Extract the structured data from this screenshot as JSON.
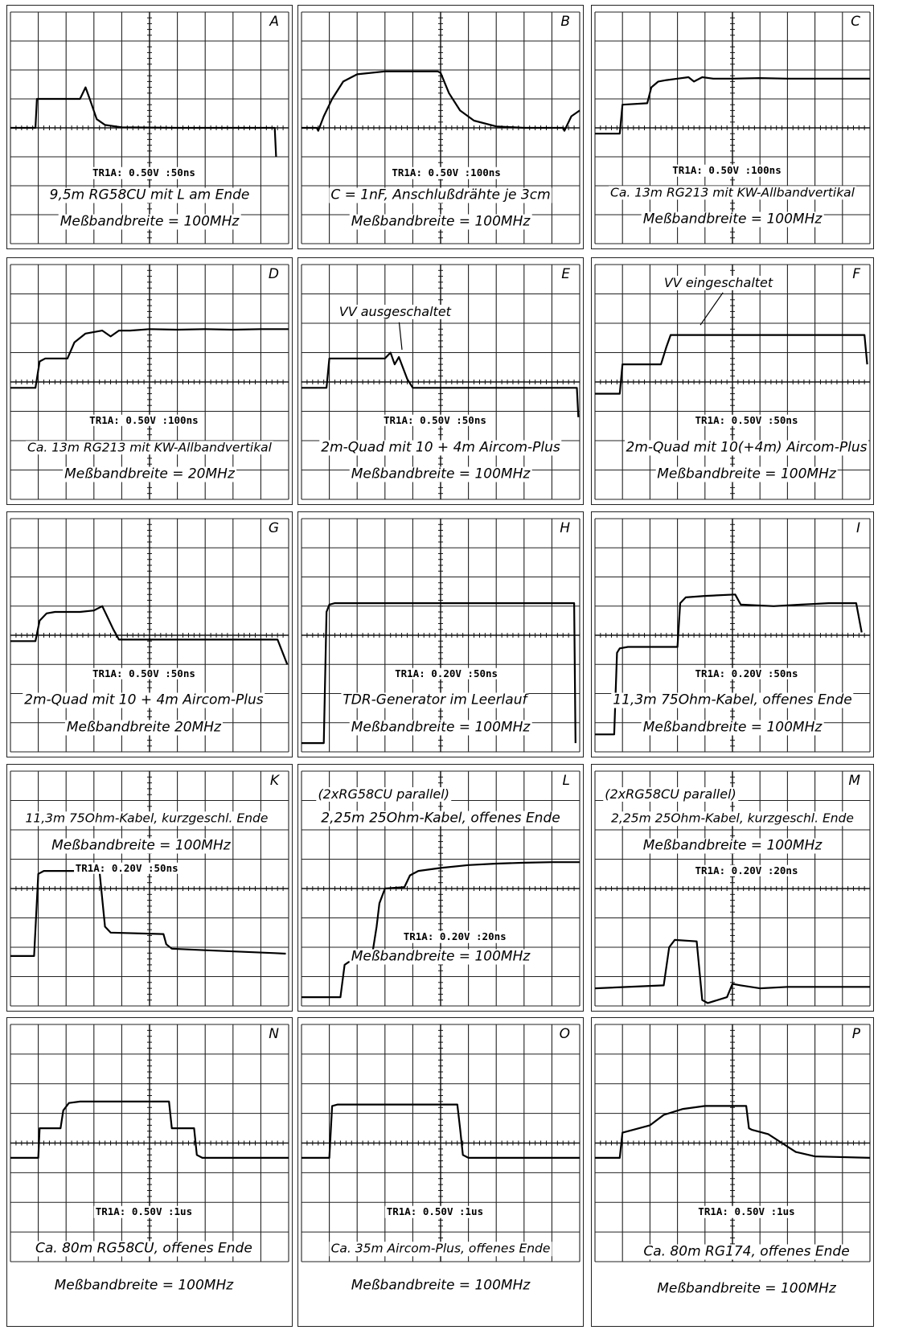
{
  "chart_data": [
    {
      "type": "line",
      "panel": "A",
      "readout": "TR1A: 0.50V :50ns",
      "caption": "9,5m RG58CU mit L am Ende",
      "bandwidth": "Meßbandbreite = 100MHz",
      "y_div_V": 0.5,
      "x_div_ns": 50,
      "x": [
        0,
        0.9,
        0.95,
        1.2,
        2.5,
        2.7,
        2.85,
        3.1,
        3.4,
        4,
        6,
        9.5,
        9.55
      ],
      "y": [
        0,
        0,
        1,
        1,
        1,
        1.4,
        1.0,
        0.3,
        0.1,
        0.02,
        0,
        0,
        -1
      ]
    },
    {
      "type": "line",
      "panel": "B",
      "readout": "TR1A: 0.50V :100ns",
      "caption": "C = 1nF, Anschlußdrähte je 3cm",
      "bandwidth": "Meßbandbreite = 100MHz",
      "y_div_V": 0.5,
      "x_div_ns": 100,
      "x": [
        0,
        0.55,
        0.6,
        0.8,
        1.1,
        1.5,
        2,
        3,
        4,
        4.9,
        5.0,
        5.3,
        5.7,
        6.2,
        7,
        8,
        9.4,
        9.45,
        9.7,
        10
      ],
      "y": [
        0,
        0,
        -0.1,
        0.4,
        1.0,
        1.6,
        1.85,
        1.95,
        1.95,
        1.95,
        1.9,
        1.2,
        0.6,
        0.25,
        0.05,
        0,
        0,
        -0.1,
        0.4,
        0.6
      ]
    },
    {
      "type": "line",
      "panel": "C",
      "readout": "TR1A: 0.50V :100ns",
      "caption": "Ca. 13m RG213 mit KW-Allbandvertikal",
      "bandwidth": "Meßbandbreite = 100MHz",
      "y_div_V": 0.5,
      "x_div_ns": 100,
      "x": [
        0,
        0.9,
        1.0,
        1.9,
        2.05,
        2.3,
        2.6,
        3,
        3.4,
        3.6,
        3.9,
        4.3,
        5,
        6,
        7,
        8,
        9,
        10
      ],
      "y": [
        0,
        0,
        1,
        1.05,
        1.6,
        1.8,
        1.85,
        1.9,
        1.95,
        1.8,
        1.95,
        1.9,
        1.9,
        1.92,
        1.9,
        1.9,
        1.9,
        1.9
      ]
    },
    {
      "type": "line",
      "panel": "D",
      "readout": "TR1A: 0.50V :100ns",
      "caption": "Ca. 13m RG213 mit KW-Allbandvertikal",
      "bandwidth": "Meßbandbreite = 20MHz",
      "y_div_V": 0.5,
      "x_div_ns": 100,
      "x": [
        0,
        0.9,
        1.05,
        1.25,
        2.05,
        2.3,
        2.7,
        3.3,
        3.6,
        3.9,
        4.3,
        5,
        6,
        7,
        8,
        9,
        10
      ],
      "y": [
        0,
        0,
        0.9,
        1.0,
        1.0,
        1.55,
        1.85,
        1.95,
        1.75,
        1.95,
        1.95,
        2.0,
        1.98,
        2.0,
        1.98,
        2.0,
        2.0
      ]
    },
    {
      "type": "line",
      "panel": "E",
      "readout": "TR1A: 0.50V :50ns",
      "caption": "2m-Quad mit 10 + 4m Aircom-Plus",
      "bandwidth": "Meßbandbreite = 100MHz",
      "annotation": "VV ausgeschaltet",
      "y_div_V": 0.5,
      "x_div_ns": 50,
      "x": [
        0,
        0.9,
        1.0,
        1.5,
        3.0,
        3.2,
        3.35,
        3.5,
        3.8,
        4.0,
        5,
        7,
        9.9,
        9.95
      ],
      "y": [
        0,
        0,
        1.0,
        1.0,
        1.0,
        1.2,
        0.8,
        1.05,
        0.3,
        0.0,
        0.0,
        0.0,
        0.0,
        -1
      ]
    },
    {
      "type": "line",
      "panel": "F",
      "readout": "TR1A: 0.50V :50ns",
      "caption": "2m-Quad mit 10(+4m) Aircom-Plus",
      "bandwidth": "Meßbandbreite = 100MHz",
      "annotation": "VV eingeschaltet",
      "y_div_V": 0.5,
      "x_div_ns": 50,
      "x": [
        0,
        0.9,
        1.0,
        1.3,
        2.4,
        2.6,
        2.75,
        3,
        5,
        7,
        9.8,
        9.9
      ],
      "y": [
        0,
        0,
        1.0,
        1.0,
        1.0,
        1.6,
        2.0,
        2.0,
        2.0,
        2.0,
        2.0,
        1.0
      ]
    },
    {
      "type": "line",
      "panel": "G",
      "readout": "TR1A: 0.50V :50ns",
      "caption": "2m-Quad mit 10 + 4m Aircom-Plus",
      "bandwidth": "Meßbandbreite 20MHz",
      "y_div_V": 0.5,
      "x_div_ns": 50,
      "x": [
        0,
        0.9,
        1.05,
        1.3,
        1.6,
        2.5,
        3.0,
        3.3,
        3.7,
        3.9,
        5,
        7,
        9.6,
        9.95
      ],
      "y": [
        0,
        0,
        0.7,
        0.95,
        1.0,
        1.0,
        1.05,
        1.2,
        0.4,
        0.05,
        0.05,
        0.05,
        0.05,
        -0.8
      ]
    },
    {
      "type": "line",
      "panel": "H",
      "readout": "TR1A: 0.20V :50ns",
      "caption": "TDR-Generator im Leerlauf",
      "bandwidth": "Meßbandbreite = 100MHz",
      "y_div_V": 0.2,
      "x_div_ns": 50,
      "x": [
        0,
        0.8,
        0.9,
        1.0,
        1.2,
        2,
        5,
        8,
        9.8,
        9.85
      ],
      "y": [
        -3.2,
        -3.2,
        1.3,
        1.55,
        1.6,
        1.6,
        1.6,
        1.6,
        1.6,
        -3.2
      ]
    },
    {
      "type": "line",
      "panel": "I",
      "readout": "TR1A: 0.20V :50ns",
      "caption": "11,3m 75Ohm-Kabel, offenes Ende",
      "bandwidth": "Meßbandbreite = 100MHz",
      "y_div_V": 0.2,
      "x_div_ns": 50,
      "x": [
        0,
        0.7,
        0.8,
        0.9,
        1.2,
        3,
        3.1,
        3.3,
        4,
        5.1,
        5.3,
        6.5,
        7.5,
        8.5,
        9.5,
        9.7
      ],
      "y": [
        -3.0,
        -3.0,
        -0.2,
        -0.05,
        0.0,
        0.0,
        1.5,
        1.7,
        1.75,
        1.8,
        1.45,
        1.4,
        1.45,
        1.5,
        1.5,
        0.5
      ]
    },
    {
      "type": "line",
      "panel": "K",
      "readout": "TR1A: 0.20V :50ns",
      "caption": "11,3m 75Ohm-Kabel, kurzgeschl. Ende",
      "bandwidth": "Meßbandbreite = 100MHz",
      "y_div_V": 0.2,
      "x_div_ns": 50,
      "x": [
        0,
        0.85,
        1.0,
        1.2,
        3.2,
        3.4,
        3.6,
        5.5,
        5.6,
        5.8,
        7,
        9.5,
        9.9
      ],
      "y": [
        -1.8,
        -1.8,
        1.0,
        1.1,
        1.1,
        -0.8,
        -1.0,
        -1.05,
        -1.4,
        -1.55,
        -1.6,
        -1.7,
        -1.72
      ]
    },
    {
      "type": "line",
      "panel": "L",
      "readout": "TR1A: 0.20V :20ns",
      "caption": "2,25m 25Ohm-Kabel, offenes Ende",
      "bandwidth": "Meßbandbreite = 100MHz",
      "note": "(2xRG58CU parallel)",
      "y_div_V": 0.2,
      "x_div_ns": 20,
      "x": [
        0,
        1.4,
        1.55,
        1.7,
        2.5,
        2.7,
        2.8,
        3.0,
        3.7,
        3.9,
        4.2,
        5,
        6,
        7,
        8,
        9,
        10
      ],
      "y": [
        -3.2,
        -3.2,
        -2.1,
        -2.0,
        -2.0,
        -0.8,
        0.0,
        0.5,
        0.55,
        0.95,
        1.1,
        1.2,
        1.3,
        1.35,
        1.38,
        1.4,
        1.4
      ]
    },
    {
      "type": "line",
      "panel": "M",
      "readout": "TR1A: 0.20V :20ns",
      "caption": "2,25m 25Ohm-Kabel, kurzgeschl. Ende",
      "bandwidth": "Meßbandbreite = 100MHz",
      "note": "(2xRG58CU parallel)",
      "y_div_V": 0.2,
      "x_div_ns": 20,
      "x": [
        0,
        2.5,
        2.7,
        2.9,
        3.7,
        3.9,
        4.1,
        4.8,
        5.0,
        5.3,
        6,
        7,
        8,
        10
      ],
      "y": [
        -2.9,
        -2.8,
        -1.5,
        -1.25,
        -1.3,
        -3.3,
        -3.4,
        -3.2,
        -2.75,
        -2.8,
        -2.9,
        -2.85,
        -2.85,
        -2.85
      ]
    },
    {
      "type": "line",
      "panel": "N",
      "readout": "TR1A: 0.50V :1us",
      "caption": "Ca. 80m RG58CU, offenes Ende",
      "bandwidth": "Meßbandbreite = 100MHz",
      "y_div_V": 0.5,
      "x_div_us": 1,
      "x": [
        0,
        1.0,
        1.05,
        1.8,
        1.9,
        2.1,
        2.5,
        5.7,
        5.8,
        6.6,
        6.7,
        6.9,
        10
      ],
      "y": [
        0,
        0,
        1.0,
        1.0,
        1.6,
        1.85,
        1.9,
        1.9,
        1.0,
        1.0,
        0.1,
        0.0,
        0.0
      ]
    },
    {
      "type": "line",
      "panel": "O",
      "readout": "TR1A: 0.50V :1us",
      "caption": "Ca. 35m Aircom-Plus, offenes Ende",
      "bandwidth": "Meßbandbreite = 100MHz",
      "y_div_V": 0.5,
      "x_div_us": 1,
      "x": [
        0,
        1.0,
        1.1,
        1.3,
        5.6,
        5.7,
        5.8,
        6.0,
        10
      ],
      "y": [
        0,
        0,
        1.75,
        1.8,
        1.8,
        1.0,
        0.1,
        0.0,
        0.0
      ]
    },
    {
      "type": "line",
      "panel": "P",
      "readout": "TR1A: 0.50V :1us",
      "caption": "Ca. 80m RG174, offenes Ende",
      "bandwidth": "Meßbandbreite = 100MHz",
      "y_div_V": 0.5,
      "x_div_us": 1,
      "x": [
        0,
        0.9,
        1.0,
        1.4,
        2.0,
        2.5,
        3.2,
        4,
        5.5,
        5.6,
        5.7,
        6.3,
        6.8,
        7.3,
        8,
        10
      ],
      "y": [
        0,
        0,
        0.85,
        0.95,
        1.1,
        1.45,
        1.65,
        1.75,
        1.75,
        1.0,
        0.95,
        0.8,
        0.5,
        0.2,
        0.05,
        0.0
      ]
    }
  ]
}
